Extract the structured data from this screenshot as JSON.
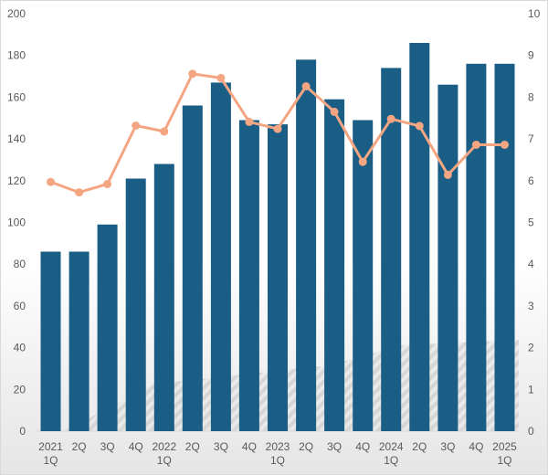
{
  "chart_data": {
    "type": "bar",
    "title": "",
    "xlabel": "",
    "ylabel": "",
    "ylim": [
      0,
      200
    ],
    "y2lim": [
      0,
      10
    ],
    "yticks": [
      0,
      20,
      40,
      60,
      80,
      100,
      120,
      140,
      160,
      180,
      200
    ],
    "y2ticks": [
      0,
      1,
      2,
      3,
      4,
      5,
      6,
      7,
      8,
      9,
      10
    ],
    "grid": false,
    "legend": "none",
    "categories": [
      [
        "2021",
        "1Q"
      ],
      [
        "2Q"
      ],
      [
        "3Q"
      ],
      [
        "4Q"
      ],
      [
        "2022",
        "1Q"
      ],
      [
        "2Q"
      ],
      [
        "3Q"
      ],
      [
        "4Q"
      ],
      [
        "2023",
        "1Q"
      ],
      [
        "2Q"
      ],
      [
        "3Q"
      ],
      [
        "4Q"
      ],
      [
        "2024",
        "1Q"
      ],
      [
        "2Q"
      ],
      [
        "3Q"
      ],
      [
        "4Q"
      ],
      [
        "2025",
        "1Q"
      ]
    ],
    "series": [
      {
        "type": "bar",
        "axis": "left",
        "color": "#1a5e86",
        "values": [
          86,
          86,
          99,
          121,
          128,
          156,
          167,
          149,
          147,
          178,
          159,
          149,
          174,
          186,
          166,
          176,
          176
        ]
      },
      {
        "type": "line",
        "axis": "right",
        "color": "#f4a582",
        "values": [
          5.97,
          5.72,
          5.92,
          7.32,
          7.18,
          8.56,
          8.46,
          7.41,
          7.24,
          8.26,
          7.65,
          6.45,
          7.48,
          7.31,
          6.14,
          6.86,
          6.86
        ]
      }
    ]
  }
}
